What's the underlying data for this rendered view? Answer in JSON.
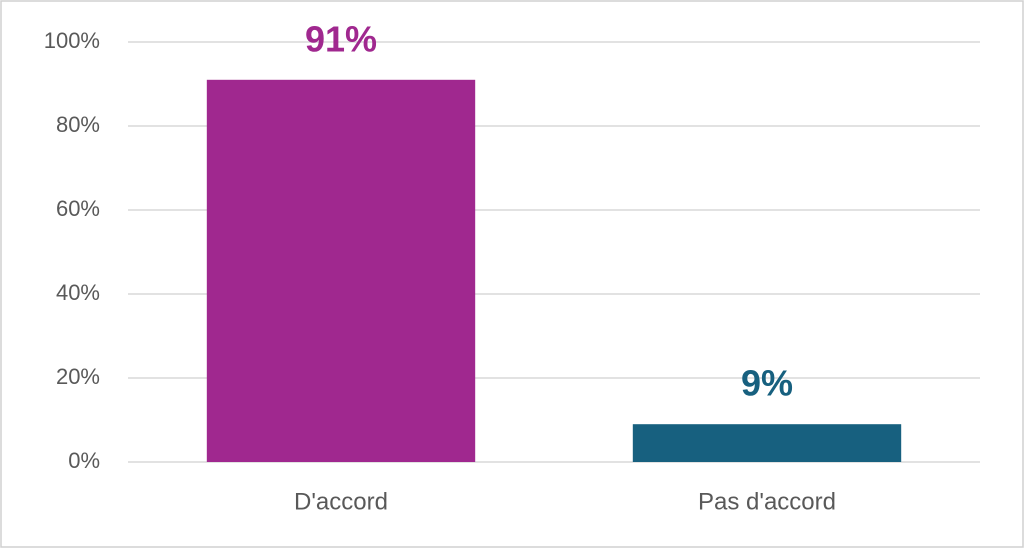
{
  "chart_data": {
    "type": "bar",
    "categories": [
      "D'accord",
      "Pas d'accord"
    ],
    "values": [
      91,
      9
    ],
    "value_labels": [
      "91%",
      "9%"
    ],
    "colors": [
      "#a0288f",
      "#17607f"
    ],
    "ylim": [
      0,
      100
    ],
    "yticks": [
      {
        "value": 0,
        "label": "0%"
      },
      {
        "value": 20,
        "label": "20%"
      },
      {
        "value": 40,
        "label": "40%"
      },
      {
        "value": 60,
        "label": "60%"
      },
      {
        "value": 80,
        "label": "80%"
      },
      {
        "value": 100,
        "label": "100%"
      }
    ],
    "grid": true
  }
}
